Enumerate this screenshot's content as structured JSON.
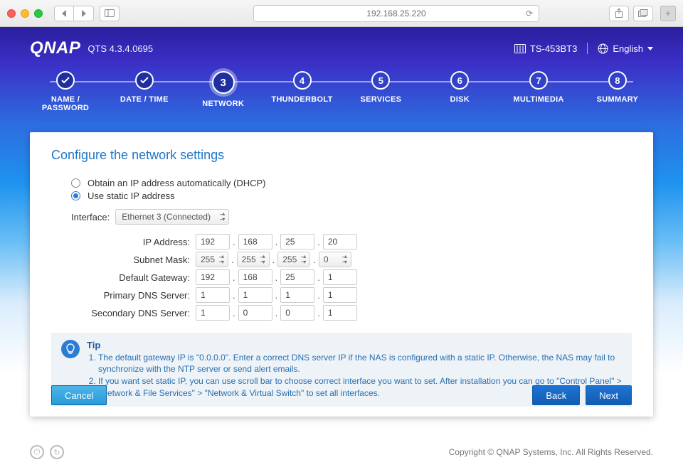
{
  "browser": {
    "url": "192.168.25.220"
  },
  "header": {
    "logo": "QNAP",
    "version": "QTS 4.3.4.0695",
    "model": "TS-453BT3",
    "language": "English"
  },
  "steps": [
    {
      "n": "1",
      "label": "NAME / PASSWORD",
      "state": "done"
    },
    {
      "n": "2",
      "label": "DATE / TIME",
      "state": "done"
    },
    {
      "n": "3",
      "label": "NETWORK",
      "state": "active"
    },
    {
      "n": "4",
      "label": "THUNDERBOLT",
      "state": "pending"
    },
    {
      "n": "5",
      "label": "SERVICES",
      "state": "pending"
    },
    {
      "n": "6",
      "label": "DISK",
      "state": "pending"
    },
    {
      "n": "7",
      "label": "MULTIMEDIA",
      "state": "pending"
    },
    {
      "n": "8",
      "label": "SUMMARY",
      "state": "pending"
    }
  ],
  "card": {
    "title": "Configure the network settings",
    "radios": {
      "dhcp": {
        "label": "Obtain an IP address automatically (DHCP)",
        "selected": false
      },
      "static": {
        "label": "Use static IP address",
        "selected": true
      }
    },
    "interface_label": "Interface:",
    "interface_value": "Ethernet 3 (Connected)",
    "fields": {
      "ip": {
        "label": "IP Address:",
        "octets": [
          "192",
          "168",
          "25",
          "20"
        ],
        "type": "text"
      },
      "mask": {
        "label": "Subnet Mask:",
        "octets": [
          "255",
          "255",
          "255",
          "0"
        ],
        "type": "select"
      },
      "gateway": {
        "label": "Default Gateway:",
        "octets": [
          "192",
          "168",
          "25",
          "1"
        ],
        "type": "text"
      },
      "dns1": {
        "label": "Primary DNS Server:",
        "octets": [
          "1",
          "1",
          "1",
          "1"
        ],
        "type": "text"
      },
      "dns2": {
        "label": "Secondary DNS Server:",
        "octets": [
          "1",
          "0",
          "0",
          "1"
        ],
        "type": "text"
      }
    },
    "tip": {
      "heading": "Tip",
      "items": [
        "The default gateway IP is \"0.0.0.0\". Enter a correct DNS server IP if the NAS is configured with a static IP. Otherwise, the NAS may fail to synchronize with the NTP server or send alert emails.",
        "If you want set static IP, you can use scroll bar to choose correct interface you want to set. After installation you can go to \"Control Panel\" > \"Network & File Services\" > \"Network & Virtual Switch\" to set all interfaces."
      ]
    },
    "buttons": {
      "cancel": "Cancel",
      "back": "Back",
      "next": "Next"
    }
  },
  "footer": {
    "copyright": "Copyright © QNAP Systems, Inc. All Rights Reserved."
  },
  "colors": {
    "accent": "#2b7cd3",
    "heading": "#2176c7",
    "btn_primary_top": "#1e74d4",
    "btn_primary_bottom": "#125bb4",
    "btn_cancel_top": "#4db4e8",
    "btn_cancel_bottom": "#2a9cd8",
    "tip_bg": "#eef3f8",
    "tip_text": "#2a6fb0"
  }
}
